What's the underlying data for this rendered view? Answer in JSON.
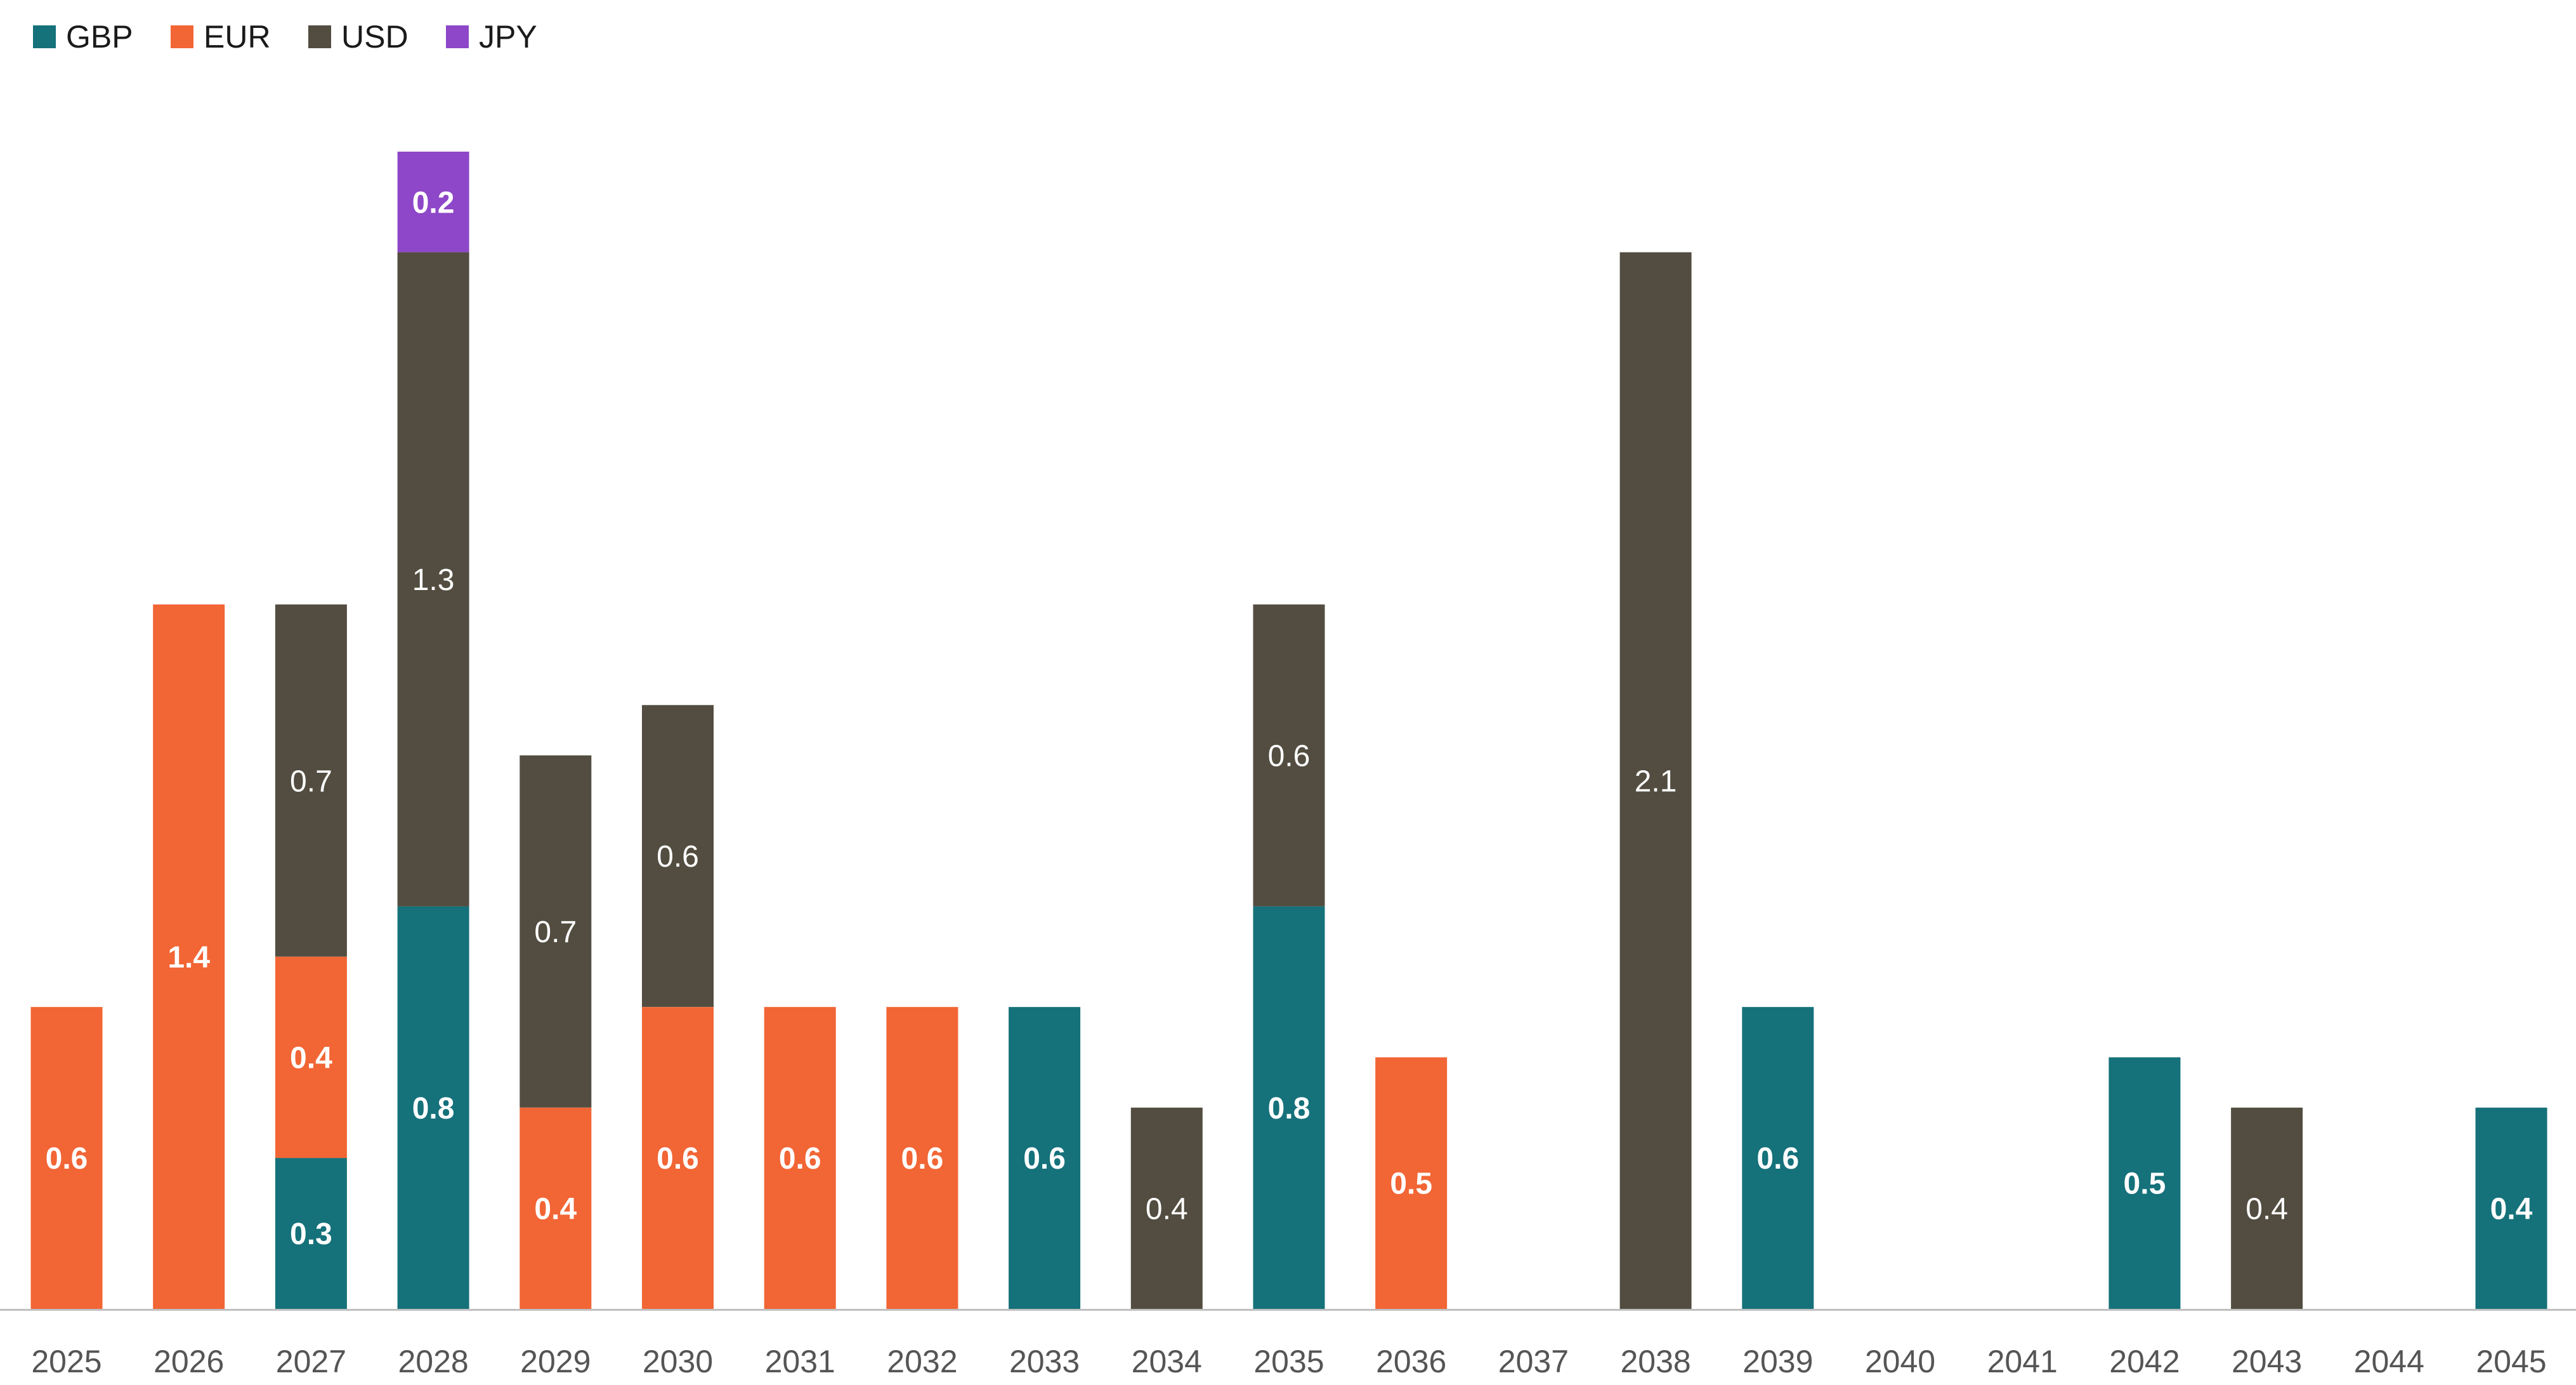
{
  "chart_data": {
    "type": "bar",
    "stacked": true,
    "title": "",
    "xlabel": "",
    "ylabel": "",
    "legend_position": "top-left",
    "grid": false,
    "ylim": [
      0,
      2.45
    ],
    "categories": [
      "2025",
      "2026",
      "2027",
      "2028",
      "2029",
      "2030",
      "2031",
      "2032",
      "2033",
      "2034",
      "2035",
      "2036",
      "2037",
      "2038",
      "2039",
      "2040",
      "2041",
      "2042",
      "2043",
      "2044",
      "2045"
    ],
    "series": [
      {
        "name": "GBP",
        "color": "#15717a",
        "label_color": "#ffffff",
        "label_bold": true,
        "values": [
          0,
          0,
          0.3,
          0.8,
          0,
          0,
          0,
          0,
          0.6,
          0,
          0.8,
          0,
          0,
          0,
          0.6,
          0,
          0,
          0.5,
          0,
          0,
          0.4
        ],
        "labels": [
          "",
          "",
          "0.3",
          "0.8",
          "",
          "",
          "",
          "",
          "0.6",
          "",
          "0.8",
          "",
          "",
          "",
          "0.6",
          "",
          "",
          "0.5",
          "",
          "",
          "0.4"
        ]
      },
      {
        "name": "EUR",
        "color": "#f26535",
        "label_color": "#ffffff",
        "label_bold": true,
        "values": [
          0.6,
          1.4,
          0.4,
          0,
          0.4,
          0.6,
          0.6,
          0.6,
          0,
          0,
          0,
          0.5,
          0,
          0,
          0,
          0,
          0,
          0,
          0,
          0,
          0
        ],
        "labels": [
          "0.6",
          "1.4",
          "0.4",
          "",
          "0.4",
          "0.6",
          "0.6",
          "0.6",
          "",
          "",
          "",
          "0.5",
          "",
          "",
          "",
          "",
          "",
          "",
          "",
          "",
          ""
        ]
      },
      {
        "name": "USD",
        "color": "#524d40",
        "label_color": "#ffffff",
        "label_bold": false,
        "values": [
          0,
          0,
          0.7,
          1.3,
          0.7,
          0.6,
          0,
          0,
          0,
          0.4,
          0.6,
          0,
          0,
          2.1,
          0,
          0,
          0,
          0,
          0.4,
          0,
          0
        ],
        "labels": [
          "",
          "",
          "0.7",
          "1.3",
          "0.7",
          "0.6",
          "",
          "",
          "",
          "0.4",
          "0.6",
          "",
          "",
          "2.1",
          "",
          "",
          "",
          "",
          "0.4",
          "",
          ""
        ]
      },
      {
        "name": "JPY",
        "color": "#8e47c8",
        "label_color": "#ffffff",
        "label_bold": true,
        "values": [
          0,
          0,
          0,
          0.2,
          0,
          0,
          0,
          0,
          0,
          0,
          0,
          0,
          0,
          0,
          0,
          0,
          0,
          0,
          0,
          0,
          0
        ],
        "labels": [
          "",
          "",
          "",
          "0.2",
          "",
          "",
          "",
          "",
          "",
          "",
          "",
          "",
          "",
          "",
          "",
          "",
          "",
          "",
          "",
          "",
          ""
        ]
      }
    ]
  },
  "style": {
    "axis_color": "#bfbfbf",
    "tick_color": "#555555",
    "legend_text_color": "#1a1a1a"
  }
}
